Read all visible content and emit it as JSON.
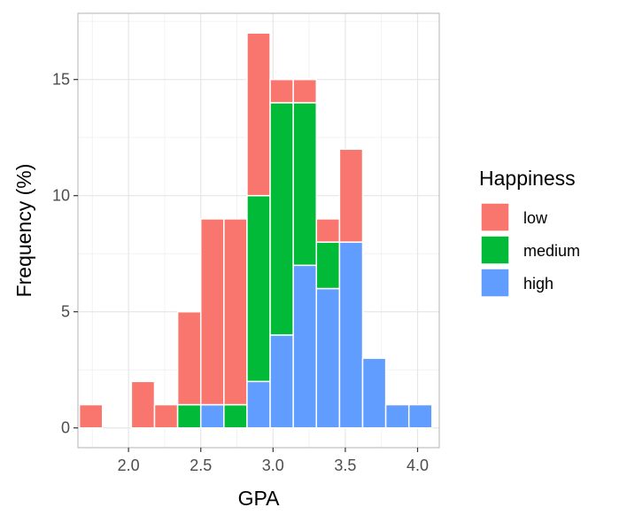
{
  "chart_data": {
    "type": "bar",
    "stacked": true,
    "xlabel": "GPA",
    "ylabel": "Frequency (%)",
    "xlim": [
      1.65,
      4.15
    ],
    "ylim": [
      -0.85,
      17.85
    ],
    "x_ticks": [
      "2.0",
      "2.5",
      "3.0",
      "3.5",
      "4.0"
    ],
    "x_tick_values": [
      2.0,
      2.5,
      3.0,
      3.5,
      4.0
    ],
    "y_ticks": [
      "0",
      "5",
      "10",
      "15"
    ],
    "y_tick_values": [
      0,
      5,
      10,
      15
    ],
    "grid": true,
    "bin_width": 0.16,
    "bin_centers": [
      1.74,
      2.1,
      2.26,
      2.42,
      2.58,
      2.74,
      2.9,
      3.06,
      3.22,
      3.38,
      3.54,
      3.7,
      3.86,
      4.02
    ],
    "series": [
      {
        "name": "high",
        "color": "#619CFF",
        "values": [
          0,
          0,
          0,
          0,
          1,
          0,
          2,
          4,
          7,
          6,
          8,
          3,
          1,
          1
        ]
      },
      {
        "name": "medium",
        "color": "#00BA38",
        "values": [
          0,
          0,
          0,
          1,
          0,
          1,
          8,
          10,
          7,
          2,
          0,
          0,
          0,
          0
        ]
      },
      {
        "name": "low",
        "color": "#F8766D",
        "values": [
          1,
          2,
          1,
          4,
          8,
          8,
          7,
          1,
          1,
          1,
          4,
          0,
          0,
          0
        ]
      }
    ],
    "legend": {
      "title": "Happiness",
      "position": "right",
      "items": [
        {
          "label": "low",
          "color": "#F8766D"
        },
        {
          "label": "medium",
          "color": "#00BA38"
        },
        {
          "label": "high",
          "color": "#619CFF"
        }
      ]
    }
  }
}
